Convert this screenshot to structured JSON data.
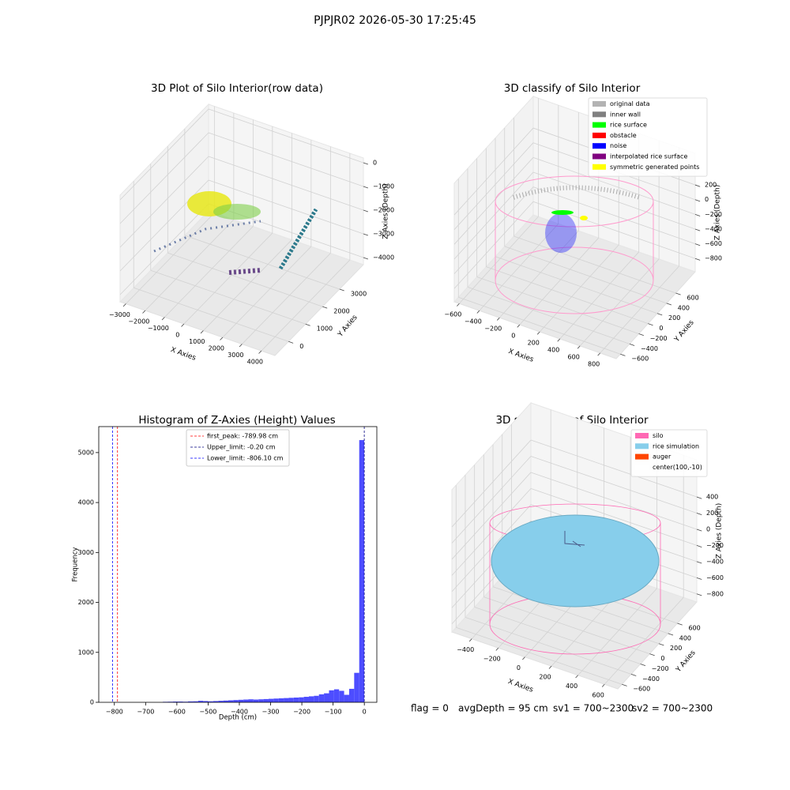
{
  "title": "PJPJR02 2026-05-30 17:25:45",
  "footer": [
    "flag = 0",
    "avgDepth = 95 cm",
    "sv1 = 700~2300",
    "sv2 = 700~2300"
  ],
  "chart_data": [
    {
      "type": "scatter3d",
      "title": "3D Plot of Silo Interior(row data)",
      "xlabel": "X Axies",
      "ylabel": "Y Axies",
      "zlabel": "Z Axies (Depth)",
      "xlim": [
        -3300,
        4700
      ],
      "ylim": [
        -800,
        4400
      ],
      "zlim": [
        -4300,
        200
      ],
      "xticks": [
        {
          "value": -3000,
          "label": "−3000"
        },
        {
          "value": -2000,
          "label": "−2000"
        },
        {
          "value": -1000,
          "label": "−1000"
        },
        0,
        1000,
        2000,
        3000,
        4000
      ],
      "yticks": [
        0,
        1000,
        2000,
        3000
      ],
      "zticks": [
        0,
        {
          "value": -1000,
          "label": "−1000"
        },
        {
          "value": -2000,
          "label": "−2000"
        },
        {
          "value": -3000,
          "label": "−3000"
        },
        {
          "value": -4000,
          "label": "−4000"
        }
      ],
      "grid": true
    },
    {
      "type": "scatter3d",
      "title": "3D classify of Silo Interior",
      "xlabel": "X Axies",
      "ylabel": "Y Axies",
      "zlabel": "Z Axies (Depth)",
      "xlim": [
        -650,
        960
      ],
      "ylim": [
        -690,
        1020
      ],
      "zlim": [
        -980,
        630
      ],
      "xticks": [
        {
          "value": -600,
          "label": "−600"
        },
        {
          "value": -400,
          "label": "−400"
        },
        {
          "value": -200,
          "label": "−200"
        },
        0,
        200,
        400,
        600,
        800
      ],
      "yticks": [
        {
          "value": -600,
          "label": "−600"
        },
        {
          "value": -400,
          "label": "−400"
        },
        {
          "value": -200,
          "label": "−200"
        },
        0,
        200,
        400,
        600
      ],
      "zticks": [
        200,
        0,
        {
          "value": -200,
          "label": "−200"
        },
        {
          "value": -400,
          "label": "−400"
        },
        {
          "value": -600,
          "label": "−600"
        },
        {
          "value": -800,
          "label": "−800"
        }
      ],
      "grid": true,
      "legend": [
        {
          "name": "original data",
          "color": "#b3b3b3"
        },
        {
          "name": "inner wall",
          "color": "#808080"
        },
        {
          "name": "rice surface",
          "color": "#00ff00"
        },
        {
          "name": "obstacle",
          "color": "#ff0000"
        },
        {
          "name": "noise",
          "color": "#0000ff"
        },
        {
          "name": "interpolated rice surface",
          "color": "#800080"
        },
        {
          "name": "symmetric generated points",
          "color": "#ffff00"
        }
      ]
    },
    {
      "type": "histogram",
      "title": "Histogram of Z-Axies (Height) Values",
      "xlabel": "Depth (cm)",
      "ylabel": "Frequency",
      "color": "#4d4dff",
      "xlim": [
        -850,
        40
      ],
      "ylim": [
        0,
        5520
      ],
      "xticks": [
        {
          "value": -800,
          "label": "−800"
        },
        {
          "value": -700,
          "label": "−700"
        },
        {
          "value": -600,
          "label": "−600"
        },
        {
          "value": -500,
          "label": "−500"
        },
        {
          "value": -400,
          "label": "−400"
        },
        {
          "value": -300,
          "label": "−300"
        },
        {
          "value": -200,
          "label": "−200"
        },
        {
          "value": -100,
          "label": "−100"
        },
        0
      ],
      "yticks": [
        0,
        1000,
        2000,
        3000,
        4000,
        5000
      ],
      "bins": [
        -806.1,
        -790.0,
        -773.9,
        -757.7,
        -741.6,
        -725.5,
        -709.4,
        -693.3,
        -677.2,
        -661.0,
        -644.9,
        -628.8,
        -612.7,
        -596.6,
        -580.5,
        -564.3,
        -548.2,
        -532.1,
        -516.0,
        -499.9,
        -483.7,
        -467.6,
        -451.5,
        -435.4,
        -419.3,
        -403.2,
        -387.0,
        -370.9,
        -354.8,
        -338.7,
        -322.6,
        -306.5,
        -290.3,
        -274.2,
        -258.1,
        -242.0,
        -225.9,
        -209.7,
        -193.6,
        -177.5,
        -161.4,
        -145.3,
        -129.2,
        -113.0,
        -96.9,
        -80.8,
        -64.7,
        -48.6,
        -32.5,
        -16.3,
        -0.2
      ],
      "values": [
        0,
        0,
        0,
        0,
        0,
        0,
        0,
        0,
        0,
        0,
        10,
        12,
        15,
        15,
        12,
        18,
        20,
        30,
        25,
        20,
        25,
        30,
        35,
        40,
        45,
        50,
        55,
        60,
        55,
        60,
        65,
        70,
        75,
        80,
        85,
        90,
        95,
        100,
        110,
        120,
        130,
        160,
        180,
        240,
        260,
        230,
        150,
        270,
        590,
        5250
      ],
      "lines": [
        {
          "label": "first_peak: -789.98 cm",
          "value": -789.98,
          "color": "#ff0000"
        },
        {
          "label": "Upper_limit: -0.20 cm",
          "value": -0.2,
          "color": "#000080"
        },
        {
          "label": "Lower_limit: -806.10 cm",
          "value": -806.1,
          "color": "#0000ff"
        }
      ]
    },
    {
      "type": "surface3d",
      "title": "3D simulation of Silo Interior",
      "xlabel": "X Axies",
      "ylabel": "Y Axies",
      "zlabel": "Z Axies (Depth)",
      "xlim": [
        -550,
        700
      ],
      "ylim": [
        -690,
        1020
      ],
      "zlim": [
        -900,
        860
      ],
      "xticks": [
        {
          "value": -400,
          "label": "−400"
        },
        {
          "value": -200,
          "label": "−200"
        },
        0,
        200,
        400,
        600
      ],
      "yticks": [
        {
          "value": -600,
          "label": "−600"
        },
        {
          "value": -400,
          "label": "−400"
        },
        {
          "value": -200,
          "label": "−200"
        },
        0,
        200,
        400,
        600
      ],
      "zticks": [
        400,
        200,
        0,
        {
          "value": -200,
          "label": "−200"
        },
        {
          "value": -400,
          "label": "−400"
        },
        {
          "value": -600,
          "label": "−600"
        },
        {
          "value": -800,
          "label": "−800"
        }
      ],
      "grid": true,
      "legend": [
        {
          "name": "silo",
          "color": "#ff69b4"
        },
        {
          "name": "rice simulation",
          "color": "#87ceeb"
        },
        {
          "name": "auger",
          "color": "#ff4500"
        },
        {
          "name": "center(100,-10)",
          "color": "#ffffff"
        }
      ]
    }
  ]
}
